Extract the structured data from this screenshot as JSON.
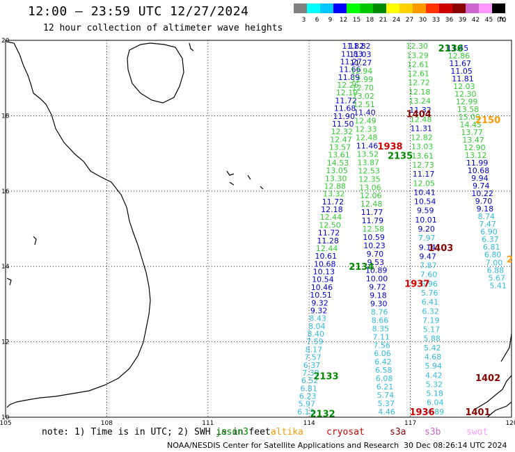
{
  "header": {
    "title": "12:00 – 23:59 UTC 12/27/2024",
    "subtitle": "12 hour collection of altimeter wave heights"
  },
  "colorbar": {
    "unit": "(ft)",
    "bins": [
      {
        "label": "3",
        "color": "#808080"
      },
      {
        "label": "6",
        "color": "#00ffff"
      },
      {
        "label": "9",
        "color": "#00c8ff"
      },
      {
        "label": "12",
        "color": "#0000ff"
      },
      {
        "label": "15",
        "color": "#00ff00"
      },
      {
        "label": "18",
        "color": "#00c800"
      },
      {
        "label": "21",
        "color": "#008800"
      },
      {
        "label": "24",
        "color": "#ffff00"
      },
      {
        "label": "27",
        "color": "#ffd000"
      },
      {
        "label": "30",
        "color": "#ff9900"
      },
      {
        "label": "33",
        "color": "#ff3300"
      },
      {
        "label": "36",
        "color": "#cc0000"
      },
      {
        "label": "39",
        "color": "#880000"
      },
      {
        "label": "42",
        "color": "#cc66cc"
      },
      {
        "label": "45",
        "color": "#ff99ff"
      },
      {
        "label": "70",
        "color": "#000000"
      }
    ]
  },
  "map": {
    "lon_range": [
      105,
      120
    ],
    "lat_range": [
      10,
      20
    ],
    "lon_ticks": [
      "105",
      "108",
      "111",
      "114",
      "117",
      "120"
    ],
    "lat_ticks": [
      "20",
      "18",
      "16",
      "14",
      "12",
      "10"
    ],
    "grid": true
  },
  "tracks": [
    {
      "name": "A",
      "lat_top": 19.85,
      "lat_bot": 10.15,
      "lon_top": 115.3,
      "lon_bot": 113.9,
      "values": [
        "11.82",
        "11.83",
        "11.27",
        "11.66",
        "11.89",
        "12.26",
        "12.19",
        "11.72",
        "11.68",
        "11.90",
        "11.50",
        "12.32",
        "12.47",
        "13.57",
        "13.61",
        "14.53",
        "13.05",
        "13.30",
        "12.88",
        "13.32",
        "11.72",
        "12.18",
        "12.44",
        "12.50",
        "11.72",
        "11.28",
        "12.44",
        "10.61",
        "10.68",
        "10.13",
        "10.54",
        "10.46",
        "10.51",
        "9.32",
        "9.32",
        "8.43",
        "8.04",
        "8.40",
        "7.59",
        "8.17",
        "7.57",
        "6.37",
        "7.39",
        "6.52",
        "6.81",
        "6.23",
        "5.97",
        "6.13"
      ],
      "colors": [
        "#0000cc",
        "#0000cc",
        "#0000cc",
        "#0000cc",
        "#0000cc",
        "#33cc33",
        "#33cc33",
        "#0000cc",
        "#0000cc",
        "#0000cc",
        "#0000cc",
        "#33cc33",
        "#33cc33",
        "#33cc33",
        "#33cc33",
        "#33cc33",
        "#33cc33",
        "#33cc33",
        "#33cc33",
        "#33cc33",
        "#0000cc",
        "#0000cc",
        "#33cc33",
        "#33cc33",
        "#0000cc",
        "#0000cc",
        "#33cc33",
        "#0000cc",
        "#0000cc",
        "#0000cc",
        "#0000cc",
        "#0000cc",
        "#0000cc",
        "#0000cc",
        "#0000cc",
        "#33bbdd",
        "#33bbdd",
        "#33bbdd",
        "#33bbdd",
        "#33bbdd",
        "#33bbdd",
        "#33bbdd",
        "#33bbdd",
        "#33bbdd",
        "#33bbdd",
        "#33bbdd",
        "#33bbdd",
        "#33bbdd"
      ]
    },
    {
      "name": "B",
      "lat_top": 19.85,
      "lat_bot": 10.15,
      "lon_top": 115.5,
      "lon_bot": 116.3,
      "values": [
        "11.82",
        "11.03",
        "11.27",
        "12.94",
        "12.99",
        "12.70",
        "13.02",
        "12.51",
        "11.40",
        "12.49",
        "12.33",
        "12.48",
        "11.46",
        "13.52",
        "13.87",
        "12.53",
        "12.35",
        "13.06",
        "12.06",
        "12.48",
        "11.77",
        "11.79",
        "12.58",
        "10.59",
        "10.23",
        "9.70",
        "9.53",
        "10.89",
        "10.00",
        "9.72",
        "9.18",
        "9.30",
        "8.76",
        "8.66",
        "8.35",
        "7.11",
        "7.56",
        "6.06",
        "6.42",
        "6.58",
        "6.08",
        "6.21",
        "5.74",
        "5.37",
        "4.46"
      ],
      "colors": [
        "#0000cc",
        "#0000cc",
        "#0000cc",
        "#33cc33",
        "#33cc33",
        "#33cc33",
        "#33cc33",
        "#33cc33",
        "#0000cc",
        "#33cc33",
        "#33cc33",
        "#33cc33",
        "#0000cc",
        "#33cc33",
        "#33cc33",
        "#33cc33",
        "#33cc33",
        "#33cc33",
        "#33cc33",
        "#33cc33",
        "#0000cc",
        "#0000cc",
        "#33cc33",
        "#0000cc",
        "#0000cc",
        "#0000cc",
        "#0000cc",
        "#0000cc",
        "#0000cc",
        "#0000cc",
        "#0000cc",
        "#0000cc",
        "#33bbdd",
        "#33bbdd",
        "#33bbdd",
        "#33bbdd",
        "#33bbdd",
        "#33bbdd",
        "#33bbdd",
        "#33bbdd",
        "#33bbdd",
        "#33bbdd",
        "#33bbdd",
        "#33bbdd",
        "#33bbdd"
      ]
    },
    {
      "name": "C",
      "lat_top": 19.85,
      "lat_bot": 10.15,
      "lon_top": 117.2,
      "lon_bot": 117.75,
      "values": [
        "12.30",
        "13.29",
        "12.61",
        "12.61",
        "12.72",
        "12.18",
        "13.24",
        "11.32",
        "12.48",
        "11.31",
        "12.82",
        "13.03",
        "13.61",
        "12.73",
        "11.17",
        "12.05",
        "10.41",
        "10.54",
        "9.59",
        "10.01",
        "9.20",
        "7.97",
        "9.14",
        "9.47",
        "7.87",
        "7.60",
        "6.96",
        "5.76",
        "6.41",
        "6.32",
        "7.19",
        "5.17",
        "5.88",
        "5.42",
        "4.68",
        "5.94",
        "4.42",
        "5.32",
        "5.18",
        "6.04",
        "4.89"
      ],
      "colors": [
        "#33cc33",
        "#33cc33",
        "#33cc33",
        "#33cc33",
        "#33cc33",
        "#33cc33",
        "#33cc33",
        "#0000cc",
        "#33cc33",
        "#0000cc",
        "#33cc33",
        "#33cc33",
        "#33cc33",
        "#33cc33",
        "#0000cc",
        "#33cc33",
        "#0000cc",
        "#0000cc",
        "#0000cc",
        "#0000cc",
        "#0000cc",
        "#33bbdd",
        "#0000cc",
        "#0000cc",
        "#33bbdd",
        "#33bbdd",
        "#33bbdd",
        "#33bbdd",
        "#33bbdd",
        "#33bbdd",
        "#33bbdd",
        "#33bbdd",
        "#33bbdd",
        "#33bbdd",
        "#33bbdd",
        "#33bbdd",
        "#33bbdd",
        "#33bbdd",
        "#33bbdd",
        "#33bbdd",
        "#33bbdd"
      ]
    },
    {
      "name": "D",
      "lat_top": 19.8,
      "lat_bot": 13.5,
      "lon_top": 118.4,
      "lon_bot": 119.6,
      "values": [
        "11.45",
        "12.86",
        "11.67",
        "11.05",
        "11.81",
        "12.03",
        "12.30",
        "12.99",
        "13.58",
        "15.09",
        "14.45",
        "13.77",
        "13.47",
        "12.90",
        "13.12",
        "11.99",
        "10.68",
        "9.94",
        "9.74",
        "10.22",
        "9.70",
        "9.18",
        "8.74",
        "7.47",
        "6.90",
        "6.37",
        "6.81",
        "6.80",
        "7.00",
        "6.88",
        "5.67",
        "5.41"
      ],
      "colors": [
        "#0000cc",
        "#33cc33",
        "#0000cc",
        "#0000cc",
        "#0000cc",
        "#33cc33",
        "#33cc33",
        "#33cc33",
        "#33cc33",
        "#33cc33",
        "#33cc33",
        "#33cc33",
        "#33cc33",
        "#33cc33",
        "#33cc33",
        "#0000cc",
        "#0000cc",
        "#0000cc",
        "#0000cc",
        "#0000cc",
        "#0000cc",
        "#0000cc",
        "#33bbdd",
        "#33bbdd",
        "#33bbdd",
        "#33bbdd",
        "#33bbdd",
        "#33bbdd",
        "#33bbdd",
        "#33bbdd",
        "#33bbdd",
        "#33bbdd"
      ]
    }
  ],
  "pass_labels": [
    {
      "text": "2136",
      "color": "#008800",
      "lon": 118.2,
      "lat": 19.8
    },
    {
      "text": "2150",
      "color": "#ff9900",
      "lon": 119.3,
      "lat": 17.9
    },
    {
      "text": "1404",
      "color": "#880000",
      "lon": 117.25,
      "lat": 18.05
    },
    {
      "text": "1938",
      "color": "#cc0000",
      "lon": 116.4,
      "lat": 17.2
    },
    {
      "text": "2135",
      "color": "#008800",
      "lon": 116.7,
      "lat": 16.95
    },
    {
      "text": "1403",
      "color": "#880000",
      "lon": 117.9,
      "lat": 14.5
    },
    {
      "text": "2134",
      "color": "#008800",
      "lon": 115.55,
      "lat": 14.0
    },
    {
      "text": "1937",
      "color": "#cc0000",
      "lon": 117.2,
      "lat": 13.55
    },
    {
      "text": "2133",
      "color": "#008800",
      "lon": 114.5,
      "lat": 11.1
    },
    {
      "text": "1402",
      "color": "#880000",
      "lon": 119.3,
      "lat": 11.05
    },
    {
      "text": "2132",
      "color": "#008800",
      "lon": 114.4,
      "lat": 10.1
    },
    {
      "text": "1936",
      "color": "#cc0000",
      "lon": 117.35,
      "lat": 10.15
    },
    {
      "text": "1401",
      "color": "#880000",
      "lon": 119.0,
      "lat": 10.15
    },
    {
      "text": "2",
      "color": "#ff9900",
      "lon": 119.95,
      "lat": 14.2
    }
  ],
  "note": {
    "prefix": "note: 1) Time is in UTC; 2) SWH is in feet",
    "sats": [
      {
        "name": "jason3",
        "color": "#008800"
      },
      {
        "name": "altika",
        "color": "#ff9900"
      },
      {
        "name": "cryosat",
        "color": "#cc0000"
      },
      {
        "name": "s3a",
        "color": "#880000"
      },
      {
        "name": "s3b",
        "color": "#cc66cc"
      },
      {
        "name": "swot",
        "color": "#ff99ff"
      }
    ]
  },
  "footer": {
    "left": "NOAA/NESDIS Center for Satellite Applications and Research",
    "right": "30 Dec 08:26:14 UTC 2024"
  }
}
